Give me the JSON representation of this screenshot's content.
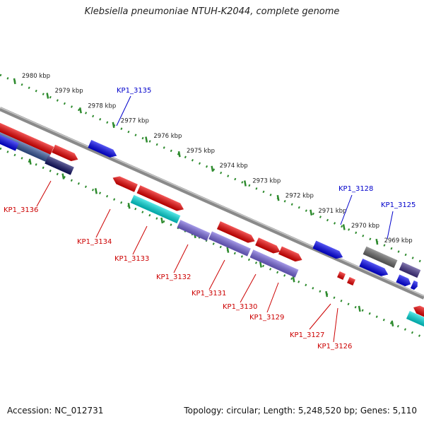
{
  "title": "Klebsiella pneumoniae NTUH-K2044, complete genome",
  "footer": {
    "accession": "Accession: NC_012731",
    "topology": "Topology: circular; Length: 5,248,520 bp; Genes: 5,110"
  },
  "colors": {
    "backbone": "#888888",
    "tick": "#2e8b2e",
    "kbp_label": "#222222",
    "forward_label": "#0000cc",
    "reverse_label": "#cc0000",
    "red_gene": "#ee0000",
    "blue_gene": "#0000ee",
    "cyan_gene": "#00dddd",
    "purple_gene": "#7766dd",
    "grey_gene": "#666666",
    "navy_gene": "#111166",
    "slate_gene": "#335599"
  },
  "ruler": [
    {
      "kbp": 2980,
      "label": "2980 kbp"
    },
    {
      "kbp": 2979,
      "label": "2979 kbp"
    },
    {
      "kbp": 2978,
      "label": "2978 kbp"
    },
    {
      "kbp": 2977,
      "label": "2977 kbp"
    },
    {
      "kbp": 2976,
      "label": "2976 kbp"
    },
    {
      "kbp": 2975,
      "label": "2975 kbp"
    },
    {
      "kbp": 2974,
      "label": "2974 kbp"
    },
    {
      "kbp": 2973,
      "label": "2973 kbp"
    },
    {
      "kbp": 2972,
      "label": "2972 kbp"
    },
    {
      "kbp": 2971,
      "label": "2971 kbp"
    },
    {
      "kbp": 2970,
      "label": "2970 kbp"
    },
    {
      "kbp": 2969,
      "label": "2969 kbp"
    }
  ],
  "gene_labels": [
    {
      "id": "KP1_3135",
      "strand": "forward"
    },
    {
      "id": "KP1_3128",
      "strand": "forward"
    },
    {
      "id": "KP1_3125",
      "strand": "forward"
    },
    {
      "id": "KP1_3136",
      "strand": "reverse"
    },
    {
      "id": "KP1_3134",
      "strand": "reverse"
    },
    {
      "id": "KP1_3133",
      "strand": "reverse"
    },
    {
      "id": "KP1_3132",
      "strand": "reverse"
    },
    {
      "id": "KP1_3131",
      "strand": "reverse"
    },
    {
      "id": "KP1_3130",
      "strand": "reverse"
    },
    {
      "id": "KP1_3129",
      "strand": "reverse"
    },
    {
      "id": "KP1_3127",
      "strand": "reverse"
    },
    {
      "id": "KP1_3126",
      "strand": "reverse"
    }
  ]
}
